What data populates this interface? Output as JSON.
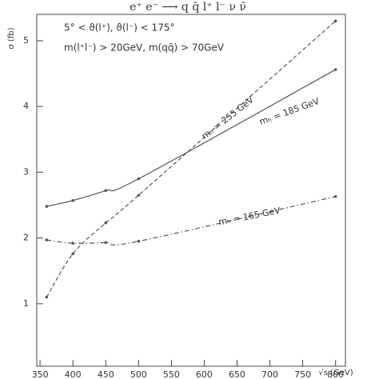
{
  "chart_data": {
    "type": "line",
    "title": "e⁺ e⁻ ⟶ q q̄ l⁺ l⁻ ν ν̄",
    "annotations": [
      "5° < ϑ(l⁺), ϑ(l⁻) < 175°",
      "m(l⁺l⁻) > 20GeV, m(qq̄) > 70GeV"
    ],
    "x_label": "√s (GeV)",
    "y_label": "σ (fb)",
    "x": [
      360,
      400,
      450,
      500,
      800
    ],
    "series": [
      {
        "name": "mₕ = 255 GeV",
        "color": "#555555",
        "dash": "dashed",
        "values": [
          1.1,
          1.76,
          2.23,
          2.65,
          5.3
        ]
      },
      {
        "name": "mₕ = 185 GeV",
        "color": "#555555",
        "dash": "solid",
        "values": [
          2.48,
          2.57,
          2.72,
          2.9,
          4.56
        ]
      },
      {
        "name": "mₕ = 165 GeV",
        "color": "#555555",
        "dash": "dashdot",
        "values": [
          1.97,
          1.92,
          1.93,
          1.95,
          2.63
        ]
      }
    ],
    "xlim": [
      345,
      815
    ],
    "ylim": [
      0.05,
      5.4
    ],
    "xticks": [
      350,
      400,
      450,
      500,
      550,
      600,
      650,
      700,
      750,
      800
    ],
    "yticks": [
      1,
      2,
      3,
      4,
      5
    ]
  }
}
